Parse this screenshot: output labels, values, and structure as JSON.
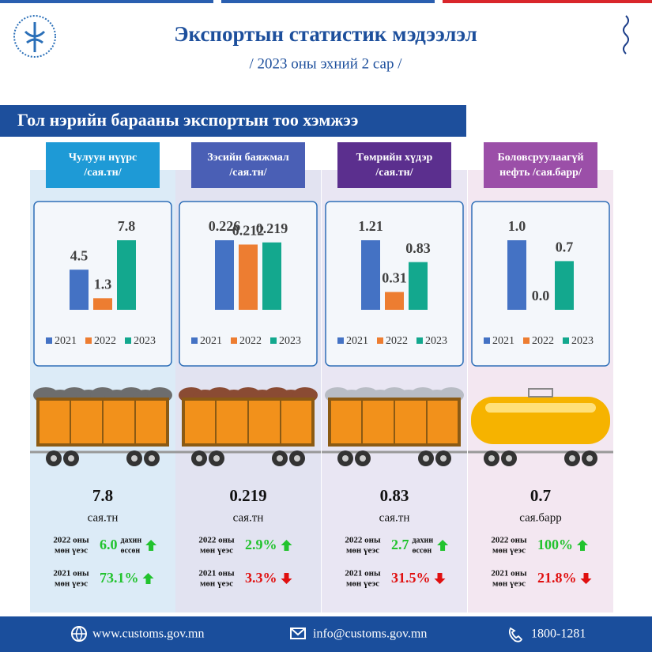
{
  "header": {
    "title": "Экспортын статистик мэдээлэл",
    "subtitle": "/ 2023 оны эхний 2 сар /"
  },
  "section_title": "Гол нэрийн барааны экспортын тоо хэмжээ",
  "chart_data": [
    {
      "type": "bar",
      "title": [
        "Чулуун нүүрс",
        "/сая.тн/"
      ],
      "color": "#1e9ad6",
      "series": [
        {
          "name": "2021",
          "color": "#4472c4",
          "values": [
            4.5
          ]
        },
        {
          "name": "2022",
          "color": "#ed7d31",
          "values": [
            1.3
          ]
        },
        {
          "name": "2023",
          "color": "#13a88e",
          "values": [
            7.8
          ]
        }
      ]
    },
    {
      "type": "bar",
      "title": [
        "Зэсийн баяжмал",
        "/сая.тн/"
      ],
      "color": "#4a5fb5",
      "series": [
        {
          "name": "2021",
          "color": "#4472c4",
          "values": [
            0.226
          ]
        },
        {
          "name": "2022",
          "color": "#ed7d31",
          "values": [
            0.212
          ]
        },
        {
          "name": "2023",
          "color": "#13a88e",
          "values": [
            0.219
          ]
        }
      ]
    },
    {
      "type": "bar",
      "title": [
        "Төмрийн хүдэр",
        "/сая.тн/"
      ],
      "color": "#5b2f8e",
      "series": [
        {
          "name": "2021",
          "color": "#4472c4",
          "values": [
            1.21
          ]
        },
        {
          "name": "2022",
          "color": "#ed7d31",
          "values": [
            0.31
          ]
        },
        {
          "name": "2023",
          "color": "#13a88e",
          "values": [
            0.83
          ]
        }
      ]
    },
    {
      "type": "bar",
      "title": [
        "Боловсруулаагүй",
        "нефть /сая.барр/"
      ],
      "color": "#9b4fa8",
      "series": [
        {
          "name": "2021",
          "color": "#4472c4",
          "values": [
            1
          ],
          "value_labels": [
            "1.0"
          ]
        },
        {
          "name": "2022",
          "color": "#ed7d31",
          "values": [
            0
          ],
          "value_labels": [
            "0.0"
          ]
        },
        {
          "name": "2023",
          "color": "#13a88e",
          "values": [
            0.7
          ]
        }
      ]
    }
  ],
  "cards": [
    {
      "value": "7.8",
      "unit": "сая.тн",
      "rows": [
        {
          "label": [
            "2022 оны",
            "мөн үеэс"
          ],
          "value": "6.0",
          "note": [
            "дахин",
            "өссөн"
          ],
          "trend": "up"
        },
        {
          "label": [
            "2021 оны",
            "мөн үеэс"
          ],
          "value": "73.1%",
          "trend": "up"
        }
      ]
    },
    {
      "value": "0.219",
      "unit": "сая.тн",
      "rows": [
        {
          "label": [
            "2022 оны",
            "мөн үеэс"
          ],
          "value": "2.9%",
          "trend": "up"
        },
        {
          "label": [
            "2021 оны",
            "мөн үеэс"
          ],
          "value": "3.3%",
          "trend": "down"
        }
      ]
    },
    {
      "value": "0.83",
      "unit": "сая.тн",
      "rows": [
        {
          "label": [
            "2022 оны",
            "мөн үеэс"
          ],
          "value": "2.7",
          "note": [
            "дахин",
            "өссөн"
          ],
          "trend": "up"
        },
        {
          "label": [
            "2021 оны",
            "мөн үеэс"
          ],
          "value": "31.5%",
          "trend": "down"
        }
      ]
    },
    {
      "value": "0.7",
      "unit": "сая.барр",
      "rows": [
        {
          "label": [
            "2022 оны",
            "мөн үеэс"
          ],
          "value": "100%",
          "trend": "up"
        },
        {
          "label": [
            "2021 оны",
            "мөн үеэс"
          ],
          "value": "21.8%",
          "trend": "down"
        }
      ]
    }
  ],
  "footer": {
    "website": "www.customs.gov.mn",
    "email": "info@customs.gov.mn",
    "phone": "1800-1281"
  }
}
